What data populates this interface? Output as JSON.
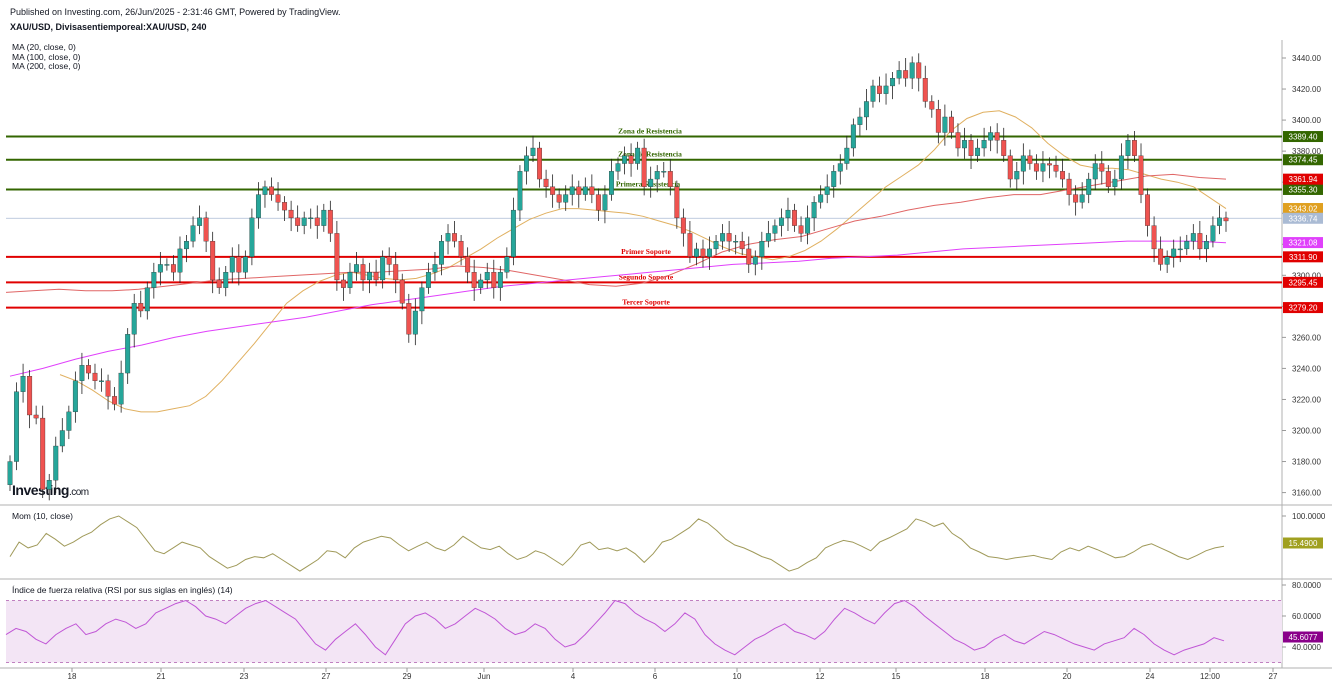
{
  "header": {
    "published": "Published on Investing.com, 26/Jun/2025 - 2:31:46 GMT, Powered by TradingView.",
    "symbol": "XAU/USD, Divisasentiemporeal:XAU/USD, 240"
  },
  "indicators": {
    "ma": [
      "MA (20, close, 0)",
      "MA (100, close, 0)",
      "MA (200, close, 0)"
    ],
    "mom_title": "Mom (10, close)",
    "rsi_title": "Índice de fuerza relativa (RSI por sus siglas en inglés) (14)"
  },
  "logo": {
    "main": "Investing",
    "suffix": ".com"
  },
  "colors": {
    "bull": "#26a69a",
    "bear": "#ef5350",
    "resistance": "#336600",
    "support": "#e00000",
    "ma20": "#e0b060",
    "ma100": "#e06666",
    "ma200": "#e040fb",
    "mom": "#a09a5a",
    "rsi": "#c056d6",
    "rsi_band": "#f3e5f5",
    "last": "#aabbd4"
  },
  "chart_data": {
    "type": "candlestick",
    "x_labels": [
      "18",
      "21",
      "23",
      "27",
      "29",
      "Jun",
      "4",
      "6",
      "10",
      "12",
      "15",
      "18",
      "20",
      "24",
      "12:00",
      "27"
    ],
    "price_axis": {
      "ticks": [
        3160,
        3180,
        3200,
        3220,
        3240,
        3260,
        3280,
        3300,
        3320,
        3340,
        3360,
        3380,
        3400,
        3420,
        3440
      ]
    },
    "levels": [
      {
        "label": "Zona de Resistencia",
        "price": 3389.4,
        "kind": "resistance",
        "tag": "3389.40"
      },
      {
        "label": "Zona de Resistencia",
        "price": 3374.45,
        "kind": "resistance",
        "tag": "3374.45"
      },
      {
        "label": "Primera Resistencia",
        "price": 3355.3,
        "kind": "resistance",
        "tag": "3355.30"
      },
      {
        "label": "Primer Soporte",
        "price": 3311.9,
        "kind": "support",
        "tag": "3311.90"
      },
      {
        "label": "Segundo Soporte",
        "price": 3295.45,
        "kind": "support",
        "tag": "3295.45"
      },
      {
        "label": "Tercer Soporte",
        "price": 3279.2,
        "kind": "support",
        "tag": "3279.20"
      }
    ],
    "ma_tags": [
      {
        "name": "MA20",
        "price": 3343.02,
        "tag": "3343.02",
        "color": "#e0a020"
      },
      {
        "name": "MA100",
        "price": 3361.94,
        "tag": "3361.94",
        "color": "#e00000"
      },
      {
        "name": "MA200",
        "price": 3321.08,
        "tag": "3321.08",
        "color": "#e040fb"
      }
    ],
    "last_price": {
      "price": 3336.74,
      "tag": "3336.74"
    },
    "closes": [
      3180,
      3225,
      3235,
      3210,
      3208,
      3162,
      3168,
      3190,
      3200,
      3212,
      3232,
      3242,
      3237,
      3232,
      3232,
      3222,
      3217,
      3237,
      3262,
      3282,
      3277,
      3292,
      3302,
      3307,
      3307,
      3302,
      3317,
      3322,
      3332,
      3337,
      3322,
      3297,
      3292,
      3302,
      3312,
      3302,
      3312,
      3337,
      3352,
      3357,
      3352,
      3347,
      3342,
      3337,
      3332,
      3337,
      3337,
      3332,
      3342,
      3327,
      3297,
      3292,
      3302,
      3307,
      3297,
      3302,
      3297,
      3312,
      3307,
      3297,
      3282,
      3262,
      3277,
      3292,
      3302,
      3307,
      3322,
      3327,
      3322,
      3312,
      3302,
      3292,
      3297,
      3302,
      3292,
      3302,
      3312,
      3342,
      3367,
      3377,
      3382,
      3362,
      3357,
      3352,
      3347,
      3352,
      3357,
      3352,
      3357,
      3352,
      3342,
      3352,
      3367,
      3372,
      3377,
      3372,
      3382,
      3357,
      3362,
      3367,
      3367,
      3357,
      3337,
      3327,
      3312,
      3317,
      3312,
      3317,
      3322,
      3327,
      3322,
      3322,
      3317,
      3307,
      3312,
      3322,
      3327,
      3332,
      3337,
      3342,
      3332,
      3327,
      3337,
      3347,
      3352,
      3357,
      3367,
      3372,
      3382,
      3397,
      3402,
      3412,
      3422,
      3417,
      3422,
      3427,
      3432,
      3427,
      3437,
      3427,
      3412,
      3407,
      3392,
      3402,
      3392,
      3382,
      3387,
      3377,
      3382,
      3387,
      3392,
      3387,
      3377,
      3362,
      3367,
      3377,
      3372,
      3367,
      3372,
      3371,
      3367,
      3362,
      3352,
      3347,
      3352,
      3362,
      3372,
      3367,
      3357,
      3362,
      3377,
      3387,
      3377,
      3352,
      3332,
      3317,
      3307,
      3312,
      3317,
      3317,
      3322,
      3327,
      3317,
      3322,
      3332,
      3337,
      3335
    ],
    "ma20_line": [
      3236,
      3232,
      3226,
      3219,
      3214,
      3212,
      3212,
      3214,
      3216,
      3222,
      3232,
      3244,
      3256,
      3269,
      3282,
      3290,
      3296,
      3300,
      3302,
      3300,
      3298,
      3297,
      3298,
      3301,
      3305,
      3311,
      3317,
      3324,
      3330,
      3336,
      3340,
      3343,
      3343,
      3342,
      3341,
      3340,
      3338,
      3335,
      3332,
      3328,
      3323,
      3318,
      3314,
      3312,
      3310,
      3312,
      3316,
      3322,
      3330,
      3339,
      3348,
      3357,
      3364,
      3371,
      3381,
      3393,
      3401,
      3405,
      3406,
      3402,
      3395,
      3385,
      3377,
      3371,
      3369,
      3369,
      3368,
      3365,
      3362,
      3360,
      3357,
      3350,
      3343
    ],
    "ma100_line": [
      3289,
      3290,
      3291,
      3290,
      3290,
      3291,
      3293,
      3295,
      3297,
      3298,
      3299,
      3300,
      3301,
      3302,
      3302,
      3303,
      3304,
      3306,
      3305,
      3303,
      3300,
      3297,
      3294,
      3293,
      3295,
      3300,
      3307,
      3315,
      3320,
      3323,
      3325,
      3330,
      3335,
      3338,
      3342,
      3345,
      3347,
      3350,
      3352,
      3352,
      3355,
      3358,
      3361,
      3364,
      3365,
      3363,
      3362
    ],
    "ma200_line": [
      3235,
      3240,
      3246,
      3251,
      3255,
      3260,
      3264,
      3267,
      3270,
      3273,
      3277,
      3281,
      3284,
      3287,
      3290,
      3293,
      3295,
      3297,
      3299,
      3301,
      3303,
      3305,
      3307,
      3308,
      3309,
      3311,
      3312,
      3313,
      3315,
      3317,
      3318,
      3319,
      3320,
      3321,
      3322,
      3322,
      3322,
      3321
    ],
    "momentum": {
      "axis": [
        "100.0000"
      ],
      "last_tag": "15.4900",
      "values": [
        30,
        55,
        45,
        50,
        70,
        60,
        48,
        55,
        65,
        72,
        85,
        95,
        100,
        90,
        80,
        60,
        40,
        35,
        45,
        55,
        50,
        45,
        30,
        20,
        10,
        15,
        25,
        30,
        28,
        35,
        25,
        15,
        5,
        15,
        25,
        40,
        38,
        28,
        45,
        55,
        60,
        65,
        62,
        50,
        40,
        48,
        55,
        45,
        40,
        50,
        65,
        55,
        45,
        42,
        48,
        35,
        25,
        30,
        40,
        35,
        25,
        15,
        30,
        50,
        55,
        42,
        45,
        40,
        45,
        35,
        20,
        35,
        55,
        60,
        70,
        80,
        95,
        88,
        75,
        60,
        50,
        45,
        38,
        30,
        25,
        15,
        5,
        10,
        20,
        28,
        45,
        52,
        58,
        55,
        48,
        40,
        55,
        62,
        70,
        78,
        95,
        90,
        82,
        88,
        70,
        60,
        45,
        38,
        30,
        28,
        25,
        28,
        30,
        32,
        28,
        25,
        38,
        45,
        40,
        48,
        42,
        35,
        28,
        30,
        38,
        48,
        52,
        45,
        38,
        30,
        25,
        32,
        40,
        45,
        48
      ]
    },
    "rsi": {
      "axis": [
        "80.0000",
        "60.0000",
        "40.0000"
      ],
      "last_tag": "45.6077",
      "upper": 70,
      "lower": 30,
      "values": [
        48,
        52,
        50,
        45,
        42,
        48,
        52,
        55,
        48,
        50,
        55,
        58,
        56,
        52,
        55,
        62,
        65,
        68,
        70,
        66,
        60,
        58,
        55,
        60,
        65,
        68,
        70,
        66,
        62,
        58,
        50,
        42,
        38,
        45,
        50,
        55,
        48,
        40,
        35,
        45,
        55,
        60,
        62,
        58,
        52,
        55,
        60,
        65,
        62,
        58,
        52,
        48,
        50,
        55,
        52,
        45,
        40,
        42,
        48,
        55,
        62,
        70,
        68,
        62,
        58,
        55,
        50,
        55,
        62,
        58,
        48,
        42,
        38,
        35,
        40,
        45,
        48,
        52,
        55,
        50,
        48,
        45,
        50,
        58,
        65,
        62,
        58,
        55,
        62,
        68,
        70,
        66,
        60,
        55,
        50,
        45,
        42,
        38,
        40,
        45,
        48,
        44,
        42,
        46,
        50,
        48,
        45,
        42,
        40,
        38,
        42,
        44,
        46,
        52,
        48,
        42,
        38,
        35,
        38,
        40,
        42,
        46,
        44
      ]
    }
  }
}
